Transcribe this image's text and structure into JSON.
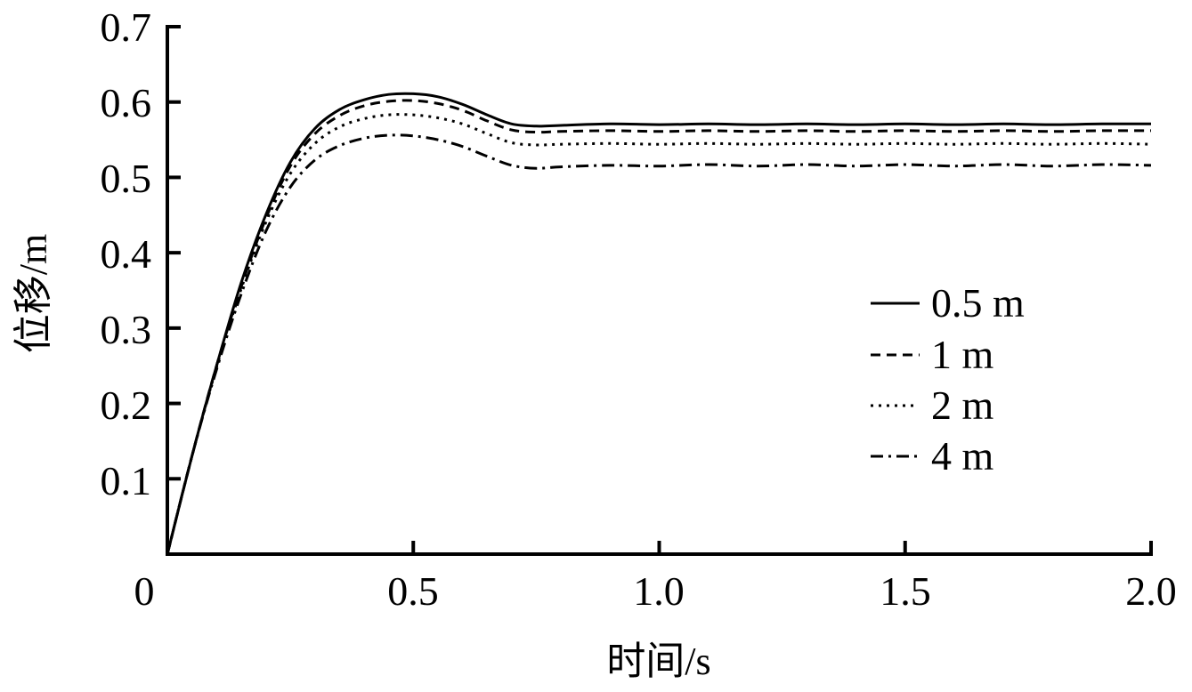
{
  "chart_data": {
    "type": "line",
    "title": "",
    "xlabel": "时间/s",
    "ylabel": "位移/m",
    "xlim": [
      0,
      2.0
    ],
    "ylim": [
      0,
      0.7
    ],
    "grid": false,
    "legend_position": "right-center inside",
    "x_ticks": [
      "0",
      "0.5",
      "1.0",
      "1.5",
      "2.0"
    ],
    "y_ticks": [
      "0.1",
      "0.2",
      "0.3",
      "0.4",
      "0.5",
      "0.6",
      "0.7"
    ],
    "x": [
      0,
      0.05,
      0.1,
      0.15,
      0.2,
      0.25,
      0.3,
      0.35,
      0.4,
      0.45,
      0.5,
      0.55,
      0.6,
      0.65,
      0.7,
      0.75,
      0.8,
      0.9,
      1.0,
      1.1,
      1.2,
      1.3,
      1.4,
      1.5,
      1.6,
      1.7,
      1.8,
      1.9,
      2.0
    ],
    "series": [
      {
        "name": "0.5 m",
        "style": "solid",
        "values": [
          0,
          0.13,
          0.25,
          0.36,
          0.45,
          0.52,
          0.565,
          0.59,
          0.603,
          0.61,
          0.611,
          0.607,
          0.597,
          0.583,
          0.571,
          0.568,
          0.569,
          0.571,
          0.57,
          0.571,
          0.57,
          0.571,
          0.57,
          0.571,
          0.57,
          0.571,
          0.57,
          0.571,
          0.571
        ]
      },
      {
        "name": "1 m",
        "style": "dashed",
        "values": [
          0,
          0.13,
          0.25,
          0.355,
          0.445,
          0.515,
          0.558,
          0.582,
          0.595,
          0.601,
          0.602,
          0.598,
          0.589,
          0.575,
          0.563,
          0.56,
          0.561,
          0.562,
          0.561,
          0.562,
          0.561,
          0.562,
          0.561,
          0.562,
          0.561,
          0.562,
          0.561,
          0.562,
          0.562
        ]
      },
      {
        "name": "2 m",
        "style": "dotted",
        "values": [
          0,
          0.13,
          0.248,
          0.352,
          0.44,
          0.505,
          0.545,
          0.567,
          0.578,
          0.583,
          0.583,
          0.579,
          0.571,
          0.558,
          0.546,
          0.543,
          0.544,
          0.545,
          0.544,
          0.545,
          0.544,
          0.545,
          0.544,
          0.545,
          0.544,
          0.545,
          0.544,
          0.545,
          0.544
        ]
      },
      {
        "name": "4 m",
        "style": "dash-dot",
        "values": [
          0,
          0.13,
          0.245,
          0.345,
          0.428,
          0.487,
          0.523,
          0.542,
          0.552,
          0.556,
          0.555,
          0.55,
          0.541,
          0.528,
          0.516,
          0.512,
          0.514,
          0.516,
          0.515,
          0.517,
          0.515,
          0.517,
          0.515,
          0.517,
          0.515,
          0.517,
          0.515,
          0.517,
          0.516
        ]
      }
    ]
  },
  "axes": {
    "xlabel": "时间/s",
    "ylabel": "位移/m"
  },
  "legend": {
    "items": [
      {
        "label": "0.5 m",
        "style": "solid"
      },
      {
        "label": "1 m",
        "style": "dashed"
      },
      {
        "label": "2 m",
        "style": "dotted"
      },
      {
        "label": "4 m",
        "style": "dash-dot"
      }
    ]
  },
  "colors": {
    "line": "#000000",
    "background": "#ffffff"
  }
}
